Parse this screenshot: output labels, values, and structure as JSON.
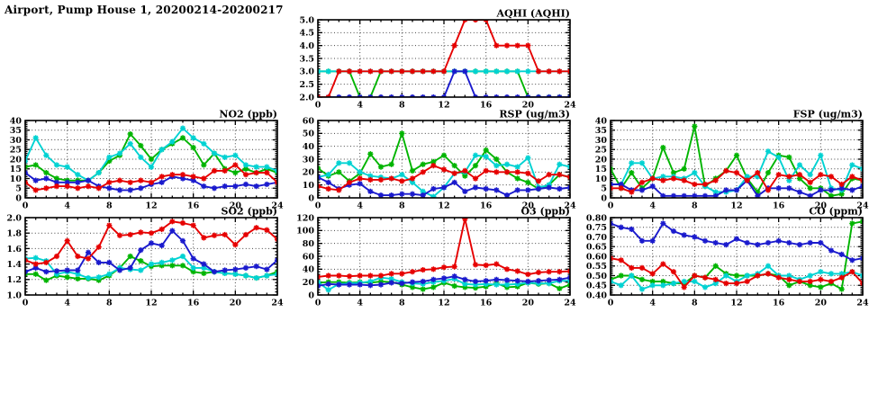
{
  "page_title": "Airport, Pump House 1, 20200214-20200217",
  "series_colors": {
    "red": "#e60000",
    "green": "#00b400",
    "blue": "#1a1acd",
    "cyan": "#00d2d2"
  },
  "chart_data": [
    {
      "key": "aqhi",
      "type": "line",
      "title": "AQHI (AQHI)",
      "xlabel": "",
      "ylabel": "",
      "x_range": [
        0,
        24
      ],
      "x_tick_step": 4,
      "ylim": [
        2.0,
        5.0
      ],
      "y_tick_step": 0.5,
      "y_decimals": 1,
      "grid": true,
      "x": [
        0,
        1,
        2,
        3,
        4,
        5,
        6,
        7,
        8,
        9,
        10,
        11,
        12,
        13,
        14,
        15,
        16,
        17,
        18,
        19,
        20,
        21,
        22,
        23,
        24
      ],
      "series": [
        {
          "name": "green",
          "values": [
            3,
            3,
            3,
            3,
            2,
            2,
            3,
            3,
            3,
            3,
            3,
            3,
            3,
            3,
            3,
            3,
            3,
            3,
            3,
            3,
            2,
            2,
            2,
            2,
            2
          ]
        },
        {
          "name": "cyan",
          "values": [
            3,
            3,
            3,
            3,
            3,
            3,
            3,
            3,
            3,
            3,
            3,
            3,
            3,
            3,
            3,
            3,
            3,
            3,
            3,
            3,
            3,
            3,
            3,
            3,
            3
          ]
        },
        {
          "name": "blue",
          "values": [
            2,
            2,
            2,
            2,
            2,
            2,
            2,
            2,
            2,
            2,
            2,
            2,
            2,
            3,
            3,
            2,
            2,
            2,
            2,
            2,
            2,
            2,
            2,
            2,
            2
          ]
        },
        {
          "name": "red",
          "values": [
            2,
            2,
            3,
            3,
            3,
            3,
            3,
            3,
            3,
            3,
            3,
            3,
            3,
            4,
            5,
            5,
            5,
            4,
            4,
            4,
            4,
            3,
            3,
            3,
            3
          ]
        }
      ]
    },
    {
      "key": "no2",
      "type": "line",
      "title": "NO2 (ppb)",
      "xlabel": "",
      "ylabel": "",
      "x_range": [
        0,
        24
      ],
      "x_tick_step": 4,
      "ylim": [
        0,
        40
      ],
      "y_tick_step": 5,
      "y_decimals": 0,
      "grid": true,
      "x": [
        0,
        1,
        2,
        3,
        4,
        5,
        6,
        7,
        8,
        9,
        10,
        11,
        12,
        13,
        14,
        15,
        16,
        17,
        18,
        19,
        20,
        21,
        22,
        23,
        24
      ],
      "series": [
        {
          "name": "green",
          "values": [
            16,
            17,
            13,
            10,
            9,
            9,
            9,
            13,
            19,
            22,
            33,
            27,
            20,
            25,
            28,
            31,
            26,
            17,
            23,
            15,
            13,
            15,
            13,
            15,
            13
          ]
        },
        {
          "name": "cyan",
          "values": [
            19,
            31,
            22,
            17,
            16,
            12,
            9,
            13,
            21,
            23,
            28,
            21,
            16,
            25,
            29,
            36,
            31,
            28,
            23,
            21,
            22,
            17,
            16,
            16,
            14
          ]
        },
        {
          "name": "blue",
          "values": [
            13,
            9,
            10,
            8,
            8,
            8,
            9,
            6,
            5,
            4,
            4,
            5,
            7,
            8,
            11,
            10,
            9,
            6,
            5,
            6,
            6,
            7,
            6,
            7,
            8
          ]
        },
        {
          "name": "red",
          "values": [
            8,
            4,
            5,
            6,
            6,
            5,
            6,
            5,
            8,
            9,
            8,
            9,
            8,
            11,
            12,
            12,
            11,
            10,
            14,
            14,
            17,
            12,
            13,
            13,
            8
          ]
        }
      ]
    },
    {
      "key": "rsp",
      "type": "line",
      "title": "RSP (ug/m3)",
      "xlabel": "",
      "ylabel": "",
      "x_range": [
        0,
        24
      ],
      "x_tick_step": 4,
      "ylim": [
        0,
        60
      ],
      "y_tick_step": 10,
      "y_decimals": 0,
      "grid": true,
      "x": [
        0,
        1,
        2,
        3,
        4,
        5,
        6,
        7,
        8,
        9,
        10,
        11,
        12,
        13,
        14,
        15,
        16,
        17,
        18,
        19,
        20,
        21,
        22,
        23,
        24
      ],
      "series": [
        {
          "name": "green",
          "values": [
            23,
            17,
            20,
            13,
            19,
            34,
            24,
            26,
            50,
            21,
            26,
            28,
            33,
            25,
            17,
            25,
            37,
            30,
            20,
            15,
            12,
            7,
            10,
            18,
            16
          ]
        },
        {
          "name": "cyan",
          "values": [
            16,
            18,
            27,
            27,
            20,
            17,
            16,
            15,
            18,
            12,
            5,
            1,
            8,
            19,
            20,
            33,
            32,
            25,
            26,
            24,
            31,
            8,
            10,
            26,
            24
          ]
        },
        {
          "name": "blue",
          "values": [
            16,
            12,
            7,
            10,
            11,
            5,
            2,
            2,
            3,
            3,
            2,
            7,
            8,
            12,
            5,
            8,
            7,
            6,
            2,
            6,
            6,
            7,
            8,
            7,
            8
          ]
        },
        {
          "name": "red",
          "values": [
            9,
            7,
            6,
            12,
            15,
            14,
            14,
            15,
            13,
            15,
            20,
            25,
            22,
            19,
            21,
            15,
            21,
            20,
            20,
            20,
            19,
            13,
            18,
            18,
            16
          ]
        }
      ]
    },
    {
      "key": "fsp",
      "type": "line",
      "title": "FSP (ug/m3)",
      "xlabel": "",
      "ylabel": "",
      "x_range": [
        0,
        24
      ],
      "x_tick_step": 4,
      "ylim": [
        0,
        40
      ],
      "y_tick_step": 5,
      "y_decimals": 0,
      "grid": true,
      "x": [
        0,
        1,
        2,
        3,
        4,
        5,
        6,
        7,
        8,
        9,
        10,
        11,
        12,
        13,
        14,
        15,
        16,
        17,
        18,
        19,
        20,
        21,
        22,
        23,
        24
      ],
      "series": [
        {
          "name": "green",
          "values": [
            15,
            5,
            13,
            5,
            10,
            26,
            13,
            15,
            37,
            6,
            10,
            14,
            22,
            10,
            3,
            13,
            22,
            21,
            10,
            5,
            5,
            1,
            2,
            10,
            9
          ]
        },
        {
          "name": "cyan",
          "values": [
            7,
            7,
            18,
            18,
            10,
            11,
            11,
            10,
            13,
            6,
            3,
            3,
            4,
            11,
            11,
            24,
            21,
            9,
            17,
            12,
            22,
            5,
            4,
            17,
            15
          ]
        },
        {
          "name": "blue",
          "values": [
            7,
            7,
            4,
            4,
            6,
            1,
            1,
            1,
            1,
            1,
            1,
            4,
            4,
            9,
            1,
            5,
            5,
            5,
            3,
            1,
            4,
            4,
            5,
            4,
            6
          ]
        },
        {
          "name": "red",
          "values": [
            5,
            5,
            3,
            8,
            10,
            9,
            10,
            9,
            7,
            7,
            9,
            14,
            13,
            9,
            13,
            4,
            12,
            11,
            12,
            8,
            12,
            11,
            7,
            11,
            9
          ]
        }
      ]
    },
    {
      "key": "so2",
      "type": "line",
      "title": "SO2 (ppb)",
      "xlabel": "",
      "ylabel": "",
      "x_range": [
        0,
        24
      ],
      "x_tick_step": 4,
      "ylim": [
        1.0,
        2.0
      ],
      "y_tick_step": 0.2,
      "y_decimals": 1,
      "grid": true,
      "x": [
        0,
        1,
        2,
        3,
        4,
        5,
        6,
        7,
        8,
        9,
        10,
        11,
        12,
        13,
        14,
        15,
        16,
        17,
        18,
        19,
        20,
        21,
        22,
        23,
        24
      ],
      "series": [
        {
          "name": "green",
          "values": [
            1.27,
            1.27,
            1.19,
            1.25,
            1.23,
            1.21,
            1.21,
            1.19,
            1.25,
            1.35,
            1.5,
            1.44,
            1.37,
            1.38,
            1.38,
            1.38,
            1.3,
            1.28,
            1.3,
            1.28,
            1.27,
            1.25,
            1.22,
            1.25,
            1.3
          ]
        },
        {
          "name": "cyan",
          "values": [
            1.47,
            1.48,
            1.44,
            1.27,
            1.3,
            1.27,
            1.22,
            1.23,
            1.27,
            1.35,
            1.33,
            1.32,
            1.4,
            1.42,
            1.45,
            1.5,
            1.35,
            1.35,
            1.3,
            1.28,
            1.27,
            1.25,
            1.22,
            1.25,
            1.27
          ]
        },
        {
          "name": "blue",
          "values": [
            1.3,
            1.35,
            1.3,
            1.31,
            1.32,
            1.32,
            1.55,
            1.42,
            1.42,
            1.32,
            1.35,
            1.58,
            1.67,
            1.64,
            1.83,
            1.7,
            1.47,
            1.4,
            1.3,
            1.32,
            1.33,
            1.35,
            1.37,
            1.33,
            1.45
          ]
        },
        {
          "name": "red",
          "values": [
            1.45,
            1.4,
            1.42,
            1.5,
            1.7,
            1.5,
            1.47,
            1.62,
            1.9,
            1.77,
            1.78,
            1.81,
            1.8,
            1.85,
            1.95,
            1.93,
            1.9,
            1.74,
            1.77,
            1.78,
            1.65,
            1.78,
            1.87,
            1.84,
            1.72
          ]
        }
      ]
    },
    {
      "key": "o3",
      "type": "line",
      "title": "O3 (ppb)",
      "xlabel": "",
      "ylabel": "",
      "x_range": [
        0,
        24
      ],
      "x_tick_step": 4,
      "ylim": [
        0,
        120
      ],
      "y_tick_step": 20,
      "y_decimals": 0,
      "grid": true,
      "x": [
        0,
        1,
        2,
        3,
        4,
        5,
        6,
        7,
        8,
        9,
        10,
        11,
        12,
        13,
        14,
        15,
        16,
        17,
        18,
        19,
        20,
        21,
        22,
        23,
        24
      ],
      "series": [
        {
          "name": "green",
          "values": [
            19,
            20,
            20,
            19,
            20,
            19,
            21,
            20,
            16,
            12,
            9,
            12,
            19,
            14,
            12,
            11,
            13,
            18,
            12,
            13,
            19,
            17,
            18,
            10,
            16
          ]
        },
        {
          "name": "cyan",
          "values": [
            20,
            8,
            17,
            18,
            19,
            21,
            27,
            25,
            20,
            18,
            17,
            20,
            22,
            25,
            17,
            16,
            17,
            16,
            16,
            17,
            19,
            18,
            18,
            22,
            22
          ]
        },
        {
          "name": "blue",
          "values": [
            14,
            17,
            16,
            16,
            16,
            15,
            16,
            19,
            18,
            20,
            21,
            24,
            26,
            29,
            24,
            21,
            22,
            24,
            23,
            22,
            21,
            22,
            23,
            24,
            27
          ]
        },
        {
          "name": "red",
          "values": [
            28,
            30,
            30,
            29,
            30,
            30,
            30,
            33,
            33,
            36,
            39,
            40,
            43,
            44,
            118,
            47,
            46,
            48,
            40,
            37,
            32,
            35,
            36,
            36,
            37
          ]
        }
      ]
    },
    {
      "key": "co",
      "type": "line",
      "title": "CO (ppm)",
      "xlabel": "",
      "ylabel": "",
      "x_range": [
        0,
        24
      ],
      "x_tick_step": 4,
      "ylim": [
        0.4,
        0.8
      ],
      "y_tick_step": 0.05,
      "y_decimals": 2,
      "grid": true,
      "x": [
        0,
        1,
        2,
        3,
        4,
        5,
        6,
        7,
        8,
        9,
        10,
        11,
        12,
        13,
        14,
        15,
        16,
        17,
        18,
        19,
        20,
        21,
        22,
        23,
        24
      ],
      "series": [
        {
          "name": "green",
          "values": [
            0.48,
            0.5,
            0.5,
            0.48,
            0.47,
            0.47,
            0.46,
            0.46,
            0.5,
            0.49,
            0.55,
            0.51,
            0.5,
            0.5,
            0.5,
            0.51,
            0.5,
            0.45,
            0.47,
            0.45,
            0.44,
            0.46,
            0.43,
            0.77,
            0.78
          ]
        },
        {
          "name": "cyan",
          "values": [
            0.47,
            0.45,
            0.5,
            0.43,
            0.45,
            0.45,
            0.46,
            0.47,
            0.47,
            0.44,
            0.46,
            0.5,
            0.47,
            0.5,
            0.51,
            0.55,
            0.5,
            0.5,
            0.48,
            0.5,
            0.52,
            0.51,
            0.51,
            0.52,
            0.5
          ]
        },
        {
          "name": "blue",
          "values": [
            0.77,
            0.75,
            0.74,
            0.68,
            0.68,
            0.77,
            0.73,
            0.71,
            0.7,
            0.68,
            0.67,
            0.66,
            0.69,
            0.67,
            0.66,
            0.67,
            0.68,
            0.67,
            0.66,
            0.67,
            0.67,
            0.63,
            0.61,
            0.58,
            0.59
          ]
        },
        {
          "name": "red",
          "values": [
            0.59,
            0.58,
            0.54,
            0.54,
            0.51,
            0.56,
            0.52,
            0.44,
            0.5,
            0.49,
            0.48,
            0.46,
            0.46,
            0.47,
            0.5,
            0.51,
            0.49,
            0.48,
            0.47,
            0.47,
            0.48,
            0.47,
            0.49,
            0.52,
            0.46
          ]
        }
      ]
    }
  ]
}
